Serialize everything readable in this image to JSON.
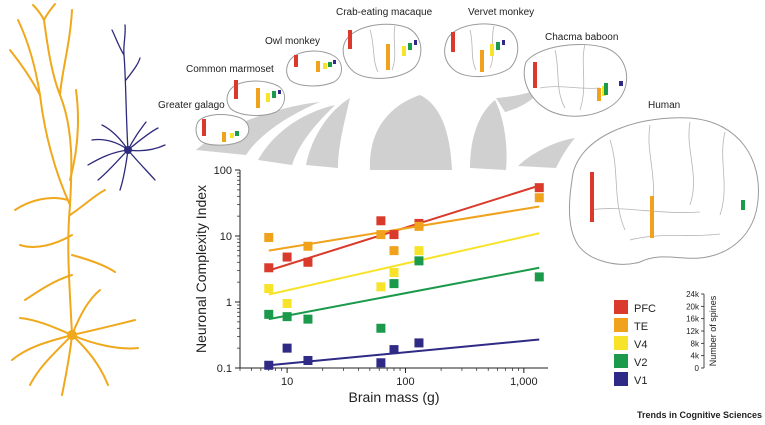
{
  "species": [
    {
      "name": "Greater galago"
    },
    {
      "name": "Common marmoset"
    },
    {
      "name": "Owl monkey"
    },
    {
      "name": "Crab-eating macaque"
    },
    {
      "name": "Vervet monkey"
    },
    {
      "name": "Chacma baboon"
    },
    {
      "name": "Human"
    }
  ],
  "colors": {
    "PFC": "#d93a2b",
    "TE": "#f0a21c",
    "V4": "#f7e32a",
    "V2": "#1a9a4a",
    "V1": "#2e2a85"
  },
  "chart_data": {
    "type": "scatter",
    "xlabel": "Brain mass (g)",
    "ylabel": "Neuronal Complexity Index",
    "xscale": "log",
    "yscale": "log",
    "xlim": [
      4,
      1600
    ],
    "ylim": [
      0.1,
      100
    ],
    "xticks": [
      {
        "value": 10,
        "label": "10"
      },
      {
        "value": 100,
        "label": "100"
      },
      {
        "value": 1000,
        "label": "1,000"
      }
    ],
    "yticks": [
      {
        "value": 0.1,
        "label": "0.1"
      },
      {
        "value": 1,
        "label": "1"
      },
      {
        "value": 10,
        "label": "10"
      },
      {
        "value": 100,
        "label": "100"
      }
    ],
    "legend_position": "right",
    "series": [
      {
        "name": "PFC",
        "color": "#d93a2b",
        "points": [
          {
            "x": 7,
            "y": 3.3
          },
          {
            "x": 10,
            "y": 4.8
          },
          {
            "x": 15,
            "y": 4.0
          },
          {
            "x": 62,
            "y": 17
          },
          {
            "x": 80,
            "y": 10.5
          },
          {
            "x": 130,
            "y": 15.5
          },
          {
            "x": 1350,
            "y": 54
          }
        ],
        "trend": [
          {
            "x": 7,
            "y": 3.0
          },
          {
            "x": 1350,
            "y": 58
          }
        ]
      },
      {
        "name": "TE",
        "color": "#f0a21c",
        "points": [
          {
            "x": 7,
            "y": 9.5
          },
          {
            "x": 15,
            "y": 7.0
          },
          {
            "x": 62,
            "y": 10.5
          },
          {
            "x": 80,
            "y": 6.0
          },
          {
            "x": 130,
            "y": 14
          },
          {
            "x": 1350,
            "y": 38
          }
        ],
        "trend": [
          {
            "x": 7,
            "y": 6.0
          },
          {
            "x": 1350,
            "y": 28
          }
        ]
      },
      {
        "name": "V4",
        "color": "#f7e32a",
        "points": [
          {
            "x": 7,
            "y": 1.6
          },
          {
            "x": 10,
            "y": 0.95
          },
          {
            "x": 62,
            "y": 1.7
          },
          {
            "x": 80,
            "y": 2.8
          },
          {
            "x": 130,
            "y": 6.0
          }
        ],
        "trend": [
          {
            "x": 7,
            "y": 1.3
          },
          {
            "x": 1350,
            "y": 11
          }
        ]
      },
      {
        "name": "V2",
        "color": "#1a9a4a",
        "points": [
          {
            "x": 7,
            "y": 0.65
          },
          {
            "x": 10,
            "y": 0.6
          },
          {
            "x": 15,
            "y": 0.55
          },
          {
            "x": 62,
            "y": 0.4
          },
          {
            "x": 80,
            "y": 1.9
          },
          {
            "x": 130,
            "y": 4.2
          },
          {
            "x": 1350,
            "y": 2.4
          }
        ],
        "trend": [
          {
            "x": 7,
            "y": 0.55
          },
          {
            "x": 1350,
            "y": 3.3
          }
        ]
      },
      {
        "name": "V1",
        "color": "#2e2a85",
        "points": [
          {
            "x": 7,
            "y": 0.11
          },
          {
            "x": 10,
            "y": 0.2
          },
          {
            "x": 15,
            "y": 0.13
          },
          {
            "x": 62,
            "y": 0.12
          },
          {
            "x": 80,
            "y": 0.19
          },
          {
            "x": 130,
            "y": 0.24
          }
        ],
        "trend": [
          {
            "x": 7,
            "y": 0.11
          },
          {
            "x": 1350,
            "y": 0.27
          }
        ]
      }
    ]
  },
  "spine_scale": {
    "label": "Number of spines",
    "ticks": [
      "24k",
      "20k",
      "16k",
      "12k",
      "8k",
      "4k",
      "0"
    ]
  },
  "credit": "Trends in Cognitive Sciences"
}
